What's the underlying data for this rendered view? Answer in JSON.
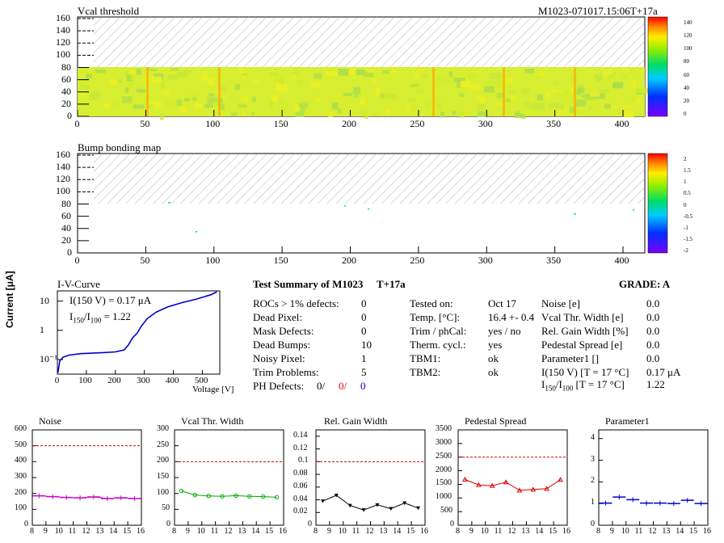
{
  "header": {
    "title": "Vcal threshold",
    "module_id": "M1023-071017.15:06T+17a"
  },
  "vcal_map": {
    "title": "Vcal threshold",
    "x_ticks": [
      "0",
      "50",
      "100",
      "150",
      "200",
      "250",
      "300",
      "350",
      "400"
    ],
    "y_ticks": [
      "0",
      "20",
      "40",
      "60",
      "80",
      "100",
      "120",
      "140",
      "160"
    ],
    "palette_ticks": [
      "140",
      "120",
      "100",
      "80",
      "60",
      "40",
      "20",
      "0"
    ]
  },
  "bump_map": {
    "title": "Bump bonding map",
    "x_ticks": [
      "0",
      "50",
      "100",
      "150",
      "200",
      "250",
      "300",
      "350",
      "400"
    ],
    "y_ticks": [
      "0",
      "20",
      "40",
      "60",
      "80",
      "100",
      "120",
      "140",
      "160"
    ],
    "palette_ticks": [
      "2",
      "1.5",
      "1",
      "0.5",
      "0",
      "-0.5",
      "-1",
      "-1.5",
      "-2"
    ]
  },
  "iv_curve": {
    "title": "I-V-Curve",
    "current_label": "I(150 V) = 0.17 μA",
    "ratio_label": "I",
    "ratio_sub1": "150",
    "ratio_mid": "/I",
    "ratio_sub2": "100",
    "ratio_val": " =  1.22",
    "xlabel": "Voltage [V]",
    "ylabel": "Current [μA]",
    "x_ticks": [
      "0",
      "100",
      "200",
      "300",
      "400",
      "500"
    ],
    "y_ticks": [
      "10⁻¹",
      "1",
      "10"
    ]
  },
  "summary": {
    "title": "Test Summary of M1023",
    "tag": "T+17a",
    "grade": "GRADE:  A",
    "col1": [
      {
        "label": "ROCs > 1% defects:",
        "value": "0"
      },
      {
        "label": "Dead Pixel:",
        "value": "0"
      },
      {
        "label": "Mask Defects:",
        "value": "0"
      },
      {
        "label": "Dead Bumps:",
        "value": "10"
      },
      {
        "label": "Noisy Pixel:",
        "value": "1"
      },
      {
        "label": "Trim Problems:",
        "value": "5"
      }
    ],
    "ph_label": "PH Defects:",
    "ph_values": [
      "0/",
      "0/",
      "0"
    ],
    "col2": [
      {
        "label": "Tested on:",
        "value": "Oct 17"
      },
      {
        "label": "Temp. [°C]:",
        "value": "16.4 +- 0.4"
      },
      {
        "label": "Trim / phCal:",
        "value": "yes / no"
      },
      {
        "label": "Therm. cycl.:",
        "value": "yes"
      },
      {
        "label": "TBM1:",
        "value": "ok"
      },
      {
        "label": "TBM2:",
        "value": "ok"
      }
    ],
    "col3": [
      {
        "label": "Noise [e]",
        "value": "0.0"
      },
      {
        "label": "Vcal Thr. Width [e]",
        "value": "0.0"
      },
      {
        "label": "Rel. Gain Width [%]",
        "value": "0.0"
      },
      {
        "label": "Pedestal Spread [e]",
        "value": "0.0"
      },
      {
        "label": "Parameter1 []",
        "value": "0.0"
      },
      {
        "label": "I(150 V) [T = 17 °C]",
        "value": "0.17 μA"
      }
    ],
    "ratio_row": {
      "l1": "I",
      "s1": "150",
      "l2": "/I",
      "s2": "100",
      "l3": "  [T = 17 °C]",
      "value": "1.22"
    }
  },
  "colors": {
    "noise": "#cc00cc",
    "vcal": "#00aa00",
    "gain": "#000000",
    "pedestal": "#dd0000",
    "param1": "#0000cc",
    "cut": "#cc0000"
  },
  "chart_data": [
    {
      "type": "line",
      "title": "Noise",
      "x": [
        8.5,
        9.5,
        10.5,
        11.5,
        12.5,
        13.5,
        14.5,
        15.5
      ],
      "values": [
        185,
        180,
        175,
        172,
        178,
        168,
        172,
        168
      ],
      "ylim": [
        0,
        600
      ],
      "cut": 500,
      "y_ticks": [
        "0",
        "100",
        "200",
        "300",
        "400",
        "500",
        "600"
      ],
      "x_ticks": [
        "8",
        "9",
        "10",
        "11",
        "12",
        "13",
        "14",
        "15",
        "16"
      ]
    },
    {
      "type": "line",
      "title": "Vcal Thr. Width",
      "x": [
        8.5,
        9.5,
        10.5,
        11.5,
        12.5,
        13.5,
        14.5,
        15.5
      ],
      "values": [
        108,
        95,
        92,
        91,
        93,
        91,
        90,
        88
      ],
      "ylim": [
        0,
        300
      ],
      "cut": 200,
      "y_ticks": [
        "0",
        "50",
        "100",
        "150",
        "200",
        "250",
        "300"
      ],
      "x_ticks": [
        "8",
        "9",
        "10",
        "11",
        "12",
        "13",
        "14",
        "15",
        "16"
      ]
    },
    {
      "type": "line",
      "title": "Rel. Gain Width",
      "x": [
        8.5,
        9.5,
        10.5,
        11.5,
        12.5,
        13.5,
        14.5,
        15.5
      ],
      "values": [
        0.038,
        0.047,
        0.031,
        0.024,
        0.032,
        0.026,
        0.035,
        0.027
      ],
      "ylim": [
        0,
        0.15
      ],
      "cut": 0.1,
      "y_ticks": [
        "0",
        "0.02",
        "0.04",
        "0.06",
        "0.08",
        "0.1",
        "0.12",
        "0.14"
      ],
      "x_ticks": [
        "8",
        "9",
        "10",
        "11",
        "12",
        "13",
        "14",
        "15",
        "16"
      ]
    },
    {
      "type": "line",
      "title": "Pedestal Spread",
      "x": [
        8.5,
        9.5,
        10.5,
        11.5,
        12.5,
        13.5,
        14.5,
        15.5
      ],
      "values": [
        1680,
        1480,
        1450,
        1580,
        1280,
        1310,
        1340,
        1670
      ],
      "ylim": [
        0,
        3500
      ],
      "cut": 2500,
      "y_ticks": [
        "0",
        "500",
        "1000",
        "1500",
        "2000",
        "2500",
        "3000",
        "3500"
      ],
      "x_ticks": [
        "8",
        "9",
        "10",
        "11",
        "12",
        "13",
        "14",
        "15",
        "16"
      ]
    },
    {
      "type": "line",
      "title": "Parameter1",
      "x": [
        8.5,
        9.5,
        10.5,
        11.5,
        12.5,
        13.5,
        14.5,
        15.5
      ],
      "values": [
        1.02,
        1.3,
        1.18,
        1.02,
        1.02,
        1.0,
        1.15,
        1.0
      ],
      "ylim": [
        0,
        4.4
      ],
      "cut": null,
      "y_ticks": [
        "0",
        "1",
        "2",
        "3",
        "4"
      ],
      "x_ticks": [
        "8",
        "9",
        "10",
        "11",
        "12",
        "13",
        "14",
        "15",
        "16"
      ]
    }
  ]
}
